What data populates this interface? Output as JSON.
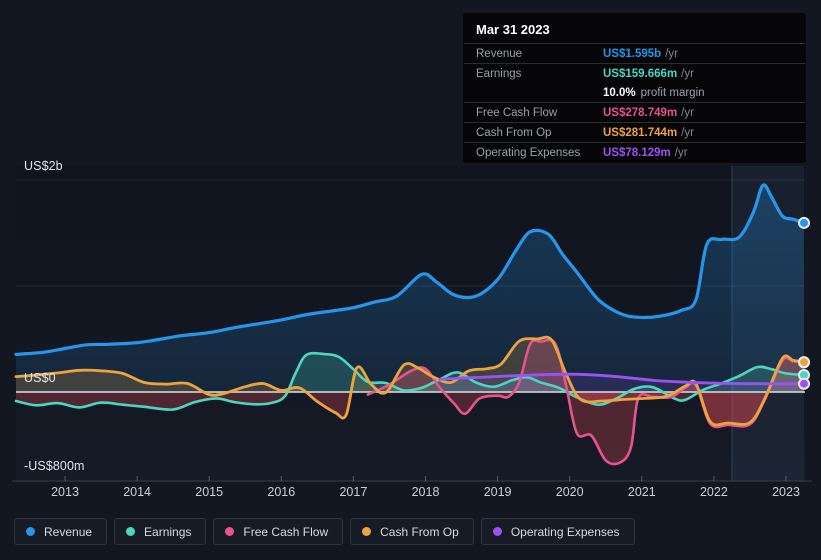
{
  "colors": {
    "revenue": "#2696ea",
    "earnings": "#4cd6c0",
    "fcf": "#e8538c",
    "cashop": "#eba43f",
    "opex": "#9c52f2",
    "negative_fill": "#c2434e",
    "zero_line": "#c8ccd2",
    "grid_line": "rgba(255,255,255,0.08)",
    "axis_line": "#3a3f49",
    "tick_label": "#ccd1d8",
    "highlight_band": "rgba(125,165,230,0.08)"
  },
  "tooltip": {
    "date": "Mar 31 2023",
    "rows": [
      {
        "label": "Revenue",
        "value": "US$1.595b",
        "unit": "/yr",
        "color_key": "revenue"
      },
      {
        "label": "Earnings",
        "value": "US$159.666m",
        "unit": "/yr",
        "color_key": "earnings",
        "sub_bold": "10.0%",
        "sub_text": "profit margin"
      },
      {
        "label": "Free Cash Flow",
        "value": "US$278.749m",
        "unit": "/yr",
        "color_key": "fcf"
      },
      {
        "label": "Cash From Op",
        "value": "US$281.744m",
        "unit": "/yr",
        "color_key": "cashop"
      },
      {
        "label": "Operating Expenses",
        "value": "US$78.129m",
        "unit": "/yr",
        "color_key": "opex"
      }
    ]
  },
  "legend": {
    "items": [
      {
        "label": "Revenue",
        "color_key": "revenue"
      },
      {
        "label": "Earnings",
        "color_key": "earnings"
      },
      {
        "label": "Free Cash Flow",
        "color_key": "fcf"
      },
      {
        "label": "Cash From Op",
        "color_key": "cashop"
      },
      {
        "label": "Operating Expenses",
        "color_key": "opex"
      }
    ]
  },
  "chart_data": {
    "type": "area",
    "x_unit": "year",
    "y_unit": "US$ millions",
    "xlim": [
      2012.32,
      2023.25
    ],
    "ylim": [
      -800,
      2000
    ],
    "grid": "horizontal",
    "legend_position": "bottom-left",
    "y_ticks": [
      {
        "value": 2000,
        "label": "US$2b"
      },
      {
        "value": 0,
        "label": "US$0"
      },
      {
        "value": -800,
        "label": "-US$800m"
      }
    ],
    "grid_values": [
      2000,
      1000
    ],
    "x_ticks": [
      2013,
      2014,
      2015,
      2016,
      2017,
      2018,
      2019,
      2020,
      2021,
      2022,
      2023
    ],
    "highlight_region": {
      "from": 2022.25,
      "to": 2023.25
    },
    "series": [
      {
        "name": "Revenue",
        "color_key": "revenue",
        "points": [
          [
            2012.32,
            355
          ],
          [
            2012.7,
            375
          ],
          [
            2013.0,
            410
          ],
          [
            2013.3,
            445
          ],
          [
            2013.6,
            450
          ],
          [
            2014.0,
            465
          ],
          [
            2014.3,
            495
          ],
          [
            2014.6,
            530
          ],
          [
            2015.0,
            560
          ],
          [
            2015.3,
            600
          ],
          [
            2015.6,
            635
          ],
          [
            2016.0,
            680
          ],
          [
            2016.35,
            730
          ],
          [
            2016.7,
            765
          ],
          [
            2017.0,
            795
          ],
          [
            2017.3,
            850
          ],
          [
            2017.6,
            905
          ],
          [
            2017.95,
            1110
          ],
          [
            2018.15,
            1040
          ],
          [
            2018.4,
            915
          ],
          [
            2018.7,
            905
          ],
          [
            2019.0,
            1060
          ],
          [
            2019.25,
            1330
          ],
          [
            2019.45,
            1510
          ],
          [
            2019.7,
            1490
          ],
          [
            2019.9,
            1300
          ],
          [
            2020.1,
            1130
          ],
          [
            2020.4,
            870
          ],
          [
            2020.7,
            740
          ],
          [
            2020.95,
            705
          ],
          [
            2021.25,
            715
          ],
          [
            2021.55,
            770
          ],
          [
            2021.75,
            870
          ],
          [
            2021.9,
            1390
          ],
          [
            2022.1,
            1440
          ],
          [
            2022.35,
            1460
          ],
          [
            2022.55,
            1700
          ],
          [
            2022.68,
            1950
          ],
          [
            2022.8,
            1840
          ],
          [
            2022.95,
            1660
          ],
          [
            2023.1,
            1630
          ],
          [
            2023.25,
            1595
          ]
        ]
      },
      {
        "name": "Earnings",
        "color_key": "earnings",
        "points": [
          [
            2012.32,
            -85
          ],
          [
            2012.6,
            -125
          ],
          [
            2012.9,
            -105
          ],
          [
            2013.2,
            -145
          ],
          [
            2013.5,
            -100
          ],
          [
            2013.8,
            -120
          ],
          [
            2014.1,
            -140
          ],
          [
            2014.5,
            -165
          ],
          [
            2014.8,
            -95
          ],
          [
            2015.1,
            -60
          ],
          [
            2015.35,
            -95
          ],
          [
            2015.6,
            -115
          ],
          [
            2015.85,
            -105
          ],
          [
            2016.05,
            -40
          ],
          [
            2016.2,
            180
          ],
          [
            2016.35,
            350
          ],
          [
            2016.6,
            358
          ],
          [
            2016.8,
            330
          ],
          [
            2017.0,
            215
          ],
          [
            2017.2,
            95
          ],
          [
            2017.45,
            85
          ],
          [
            2017.7,
            15
          ],
          [
            2017.95,
            40
          ],
          [
            2018.2,
            120
          ],
          [
            2018.45,
            185
          ],
          [
            2018.7,
            90
          ],
          [
            2018.95,
            50
          ],
          [
            2019.2,
            110
          ],
          [
            2019.4,
            140
          ],
          [
            2019.6,
            90
          ],
          [
            2019.85,
            40
          ],
          [
            2020.1,
            -50
          ],
          [
            2020.4,
            -120
          ],
          [
            2020.65,
            -60
          ],
          [
            2020.9,
            30
          ],
          [
            2021.15,
            45
          ],
          [
            2021.45,
            -60
          ],
          [
            2021.6,
            -75
          ],
          [
            2021.85,
            20
          ],
          [
            2022.1,
            80
          ],
          [
            2022.35,
            150
          ],
          [
            2022.6,
            235
          ],
          [
            2022.8,
            215
          ],
          [
            2023.0,
            175
          ],
          [
            2023.25,
            160
          ]
        ]
      },
      {
        "name": "Free Cash Flow",
        "color_key": "fcf",
        "points": [
          [
            2017.2,
            -25
          ],
          [
            2017.5,
            70
          ],
          [
            2017.8,
            200
          ],
          [
            2018.0,
            220
          ],
          [
            2018.2,
            40
          ],
          [
            2018.4,
            -110
          ],
          [
            2018.55,
            -205
          ],
          [
            2018.75,
            -60
          ],
          [
            2019.0,
            -35
          ],
          [
            2019.15,
            -45
          ],
          [
            2019.3,
            90
          ],
          [
            2019.45,
            450
          ],
          [
            2019.6,
            475
          ],
          [
            2019.8,
            455
          ],
          [
            2019.95,
            60
          ],
          [
            2020.1,
            -390
          ],
          [
            2020.3,
            -410
          ],
          [
            2020.5,
            -645
          ],
          [
            2020.7,
            -665
          ],
          [
            2020.85,
            -520
          ],
          [
            2020.95,
            -60
          ],
          [
            2021.15,
            -45
          ],
          [
            2021.4,
            -50
          ],
          [
            2021.6,
            40
          ],
          [
            2021.75,
            65
          ],
          [
            2021.95,
            -300
          ],
          [
            2022.2,
            -310
          ],
          [
            2022.5,
            -305
          ],
          [
            2022.7,
            -80
          ],
          [
            2022.95,
            295
          ],
          [
            2023.1,
            290
          ],
          [
            2023.25,
            279
          ]
        ]
      },
      {
        "name": "Cash From Op",
        "color_key": "cashop",
        "points": [
          [
            2012.32,
            145
          ],
          [
            2012.6,
            160
          ],
          [
            2012.9,
            180
          ],
          [
            2013.2,
            205
          ],
          [
            2013.5,
            200
          ],
          [
            2013.8,
            175
          ],
          [
            2014.1,
            90
          ],
          [
            2014.4,
            75
          ],
          [
            2014.7,
            80
          ],
          [
            2015.0,
            -25
          ],
          [
            2015.2,
            -15
          ],
          [
            2015.5,
            50
          ],
          [
            2015.75,
            80
          ],
          [
            2016.0,
            15
          ],
          [
            2016.25,
            40
          ],
          [
            2016.5,
            -90
          ],
          [
            2016.75,
            -195
          ],
          [
            2016.9,
            -215
          ],
          [
            2017.05,
            230
          ],
          [
            2017.25,
            70
          ],
          [
            2017.45,
            -5
          ],
          [
            2017.7,
            255
          ],
          [
            2017.9,
            225
          ],
          [
            2018.1,
            145
          ],
          [
            2018.35,
            90
          ],
          [
            2018.6,
            200
          ],
          [
            2018.85,
            220
          ],
          [
            2019.05,
            265
          ],
          [
            2019.3,
            480
          ],
          [
            2019.55,
            500
          ],
          [
            2019.75,
            490
          ],
          [
            2019.95,
            170
          ],
          [
            2020.15,
            -70
          ],
          [
            2020.45,
            -85
          ],
          [
            2020.75,
            -70
          ],
          [
            2021.05,
            -60
          ],
          [
            2021.35,
            -40
          ],
          [
            2021.6,
            55
          ],
          [
            2021.75,
            80
          ],
          [
            2021.95,
            -280
          ],
          [
            2022.2,
            -292
          ],
          [
            2022.5,
            -288
          ],
          [
            2022.7,
            -70
          ],
          [
            2022.95,
            318
          ],
          [
            2023.1,
            298
          ],
          [
            2023.25,
            282
          ]
        ]
      },
      {
        "name": "Operating Expenses",
        "color_key": "opex",
        "points": [
          [
            2018.2,
            120
          ],
          [
            2018.5,
            132
          ],
          [
            2018.8,
            140
          ],
          [
            2019.1,
            150
          ],
          [
            2019.4,
            158
          ],
          [
            2019.7,
            165
          ],
          [
            2020.0,
            168
          ],
          [
            2020.3,
            162
          ],
          [
            2020.6,
            148
          ],
          [
            2020.9,
            128
          ],
          [
            2021.2,
            108
          ],
          [
            2021.5,
            96
          ],
          [
            2021.8,
            88
          ],
          [
            2022.1,
            82
          ],
          [
            2022.4,
            79
          ],
          [
            2022.7,
            77
          ],
          [
            2023.0,
            78
          ],
          [
            2023.25,
            78
          ]
        ]
      }
    ]
  }
}
